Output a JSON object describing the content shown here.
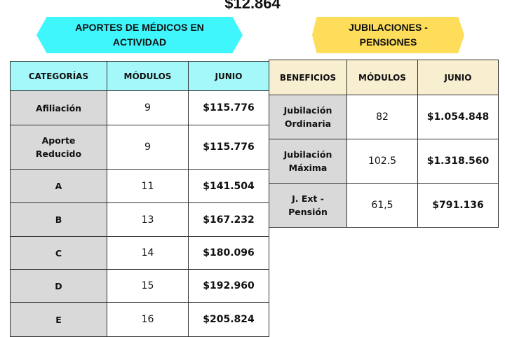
{
  "title": "$12.864",
  "left": {
    "banner": "APORTES DE MÉDICOS EN ACTIVIDAD",
    "headers": [
      "CATEGORÍAS",
      "MÓDULOS",
      "JUNIO"
    ],
    "rows": [
      {
        "cat": "Afiliación",
        "mod": "9",
        "val": "$115.776"
      },
      {
        "cat": "Aporte Reducido",
        "mod": "9",
        "val": "$115.776"
      },
      {
        "cat": "A",
        "mod": "11",
        "val": "$141.504"
      },
      {
        "cat": "B",
        "mod": "13",
        "val": "$167.232"
      },
      {
        "cat": "C",
        "mod": "14",
        "val": "$180.096"
      },
      {
        "cat": "D",
        "mod": "15",
        "val": "$192.960"
      },
      {
        "cat": "E",
        "mod": "16",
        "val": "$205.824"
      }
    ]
  },
  "right": {
    "banner": "JUBILACIONES - PENSIONES",
    "headers": [
      "BENEFICIOS",
      "MÓDULOS",
      "JUNIO"
    ],
    "rows": [
      {
        "cat": "Jubilación Ordinaria",
        "mod": "82",
        "val": "$1.054.848"
      },
      {
        "cat": "Jubilación Máxima",
        "mod": "102.5",
        "val": "$1.318.560"
      },
      {
        "cat": "J. Ext - Pensión",
        "mod": "61,5",
        "val": "$791.136"
      }
    ]
  },
  "colors": {
    "cyan": "#3ef6fb",
    "yellow": "#fedd5a",
    "cyan_header": "#a5f8f9",
    "yellow_header": "#f8eed0",
    "gray": "#d9d9d9"
  }
}
